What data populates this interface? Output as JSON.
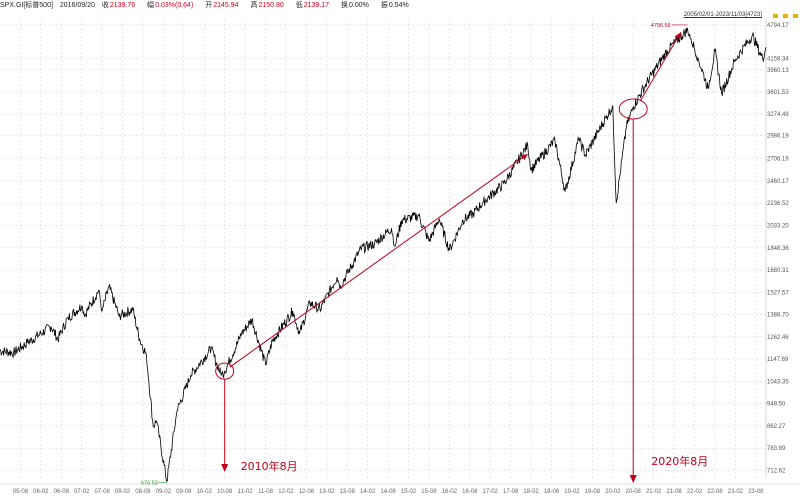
{
  "header": {
    "symbol": "SPX.GI[标普500]",
    "date": "2016/09/20",
    "fields": [
      {
        "label": "收",
        "value": "2139.76"
      },
      {
        "label": "幅",
        "value": "0.03%(0.64)"
      },
      {
        "label": "开",
        "value": "2145.94"
      },
      {
        "label": "高",
        "value": "2150.80"
      },
      {
        "label": "低",
        "value": "2139.17"
      },
      {
        "label": "换",
        "value": "0.00%"
      },
      {
        "label": "振",
        "value": "0.54%"
      }
    ]
  },
  "range_text": "2005/02/01-2023/11/03[4723]",
  "colors": {
    "price_line": "#000000",
    "annotation": "#c0001a",
    "grid": "#d9d9d9",
    "min_label": "#2e8b2e"
  },
  "chart_data": {
    "type": "line",
    "y_scale": "log",
    "ylim": [
      690,
      4900
    ],
    "yticks": [
      "4794.17",
      "4158.34",
      "3960.13",
      "3601.53",
      "3274.48",
      "2986.19",
      "2706.19",
      "2460.17",
      "2236.52",
      "2033.20",
      "1848.36",
      "1680.31",
      "1527.57",
      "1388.70",
      "1262.46",
      "1147.69",
      "1043.35",
      "948.50",
      "862.27",
      "783.89",
      "712.62"
    ],
    "xticks": [
      "05-08",
      "06-02",
      "06-08",
      "07-02",
      "07-08",
      "08-02",
      "08-08",
      "09-02",
      "09-08",
      "10-02",
      "10-08",
      "11-02",
      "11-08",
      "12-02",
      "12-08",
      "13-02",
      "13-08",
      "14-02",
      "14-08",
      "15-02",
      "15-08",
      "16-02",
      "16-08",
      "17-02",
      "17-08",
      "18-02",
      "18-08",
      "19-02",
      "19-08",
      "20-02",
      "20-08",
      "21-02",
      "21-08",
      "22-02",
      "22-08",
      "23-02",
      "23-08"
    ],
    "series": [
      {
        "x": [
          "2005-02",
          "2005-06",
          "2005-10",
          "2006-02",
          "2006-05",
          "2006-07",
          "2006-10",
          "2007-02",
          "2007-03",
          "2007-07",
          "2007-08",
          "2007-10",
          "2008-01",
          "2008-05",
          "2008-07",
          "2008-09",
          "2008-11",
          "2008-12",
          "2009-03",
          "2009-06",
          "2009-10",
          "2010-04",
          "2010-07",
          "2010-08",
          "2011-01",
          "2011-04",
          "2011-08",
          "2011-10",
          "2012-04",
          "2012-06",
          "2012-09",
          "2012-12",
          "2013-05",
          "2013-06",
          "2013-12",
          "2014-04",
          "2014-09",
          "2014-10",
          "2014-12",
          "2015-05",
          "2015-08",
          "2015-11",
          "2016-02",
          "2016-06",
          "2016-09",
          "2016-12",
          "2017-06",
          "2018-01",
          "2018-02",
          "2018-09",
          "2018-12",
          "2019-04",
          "2019-06",
          "2019-12",
          "2020-02",
          "2020-03",
          "2020-06",
          "2020-08",
          "2020-12",
          "2021-06",
          "2021-12",
          "2022-01",
          "2022-03",
          "2022-06",
          "2022-08",
          "2022-10",
          "2023-02",
          "2023-07",
          "2023-10",
          "2023-11"
        ],
        "y": [
          1190,
          1180,
          1230,
          1280,
          1320,
          1250,
          1370,
          1440,
          1390,
          1540,
          1410,
          1565,
          1380,
          1420,
          1250,
          1170,
          860,
          880,
          680,
          920,
          1070,
          1200,
          1070,
          1090,
          1280,
          1360,
          1120,
          1240,
          1410,
          1280,
          1460,
          1420,
          1630,
          1570,
          1840,
          1880,
          2010,
          1860,
          2080,
          2120,
          1900,
          2090,
          1830,
          2080,
          2140,
          2250,
          2430,
          2870,
          2580,
          2930,
          2350,
          2940,
          2750,
          3230,
          3390,
          2240,
          3100,
          3380,
          3750,
          4300,
          4700,
          4520,
          4170,
          3660,
          4300,
          3580,
          4140,
          4590,
          4150,
          4360
        ]
      }
    ],
    "extremes": {
      "max": "4796.56",
      "min": "676.53"
    },
    "annotations": [
      "2010年8月",
      "2020年8月"
    ]
  }
}
